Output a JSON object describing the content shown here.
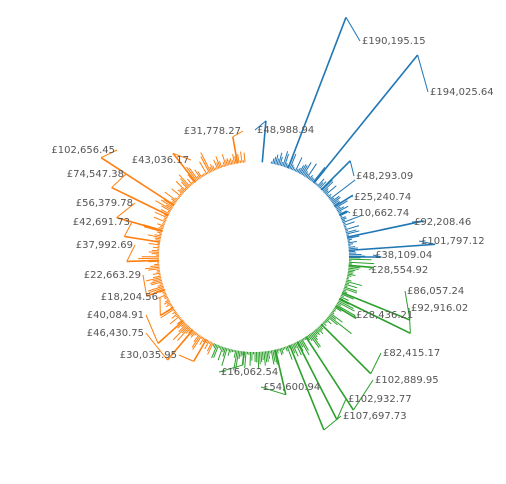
{
  "chart_data": {
    "type": "radial-bar",
    "currency_prefix": "£",
    "series": [
      {
        "name": "",
        "color": "#1f77b4"
      },
      {
        "name": "",
        "color": "#2ca02c"
      },
      {
        "name": "",
        "color": "#ff7f0e"
      }
    ],
    "labeled_points": [
      {
        "series": 0,
        "value": 190195.15,
        "label": "£190,195.15"
      },
      {
        "series": 0,
        "value": 194025.64,
        "label": "£194,025.64"
      },
      {
        "series": 0,
        "value": 48988.94,
        "label": "£48,988.94"
      },
      {
        "series": 0,
        "value": 48293.09,
        "label": "£48,293.09"
      },
      {
        "series": 0,
        "value": 25240.74,
        "label": "£25,240.74"
      },
      {
        "series": 0,
        "value": 10662.74,
        "label": "£10,662.74"
      },
      {
        "series": 0,
        "value": 92208.46,
        "label": "£92,208.46"
      },
      {
        "series": 0,
        "value": 101797.12,
        "label": "£101,797.12"
      },
      {
        "series": 0,
        "value": 38109.04,
        "label": "£38,109.04"
      },
      {
        "series": 1,
        "value": 28554.92,
        "label": "£28,554.92"
      },
      {
        "series": 1,
        "value": 86057.24,
        "label": "£86,057.24"
      },
      {
        "series": 1,
        "value": 92916.02,
        "label": "£92,916.02"
      },
      {
        "series": 1,
        "value": 28436.21,
        "label": "£28,436.21"
      },
      {
        "series": 1,
        "value": 82415.17,
        "label": "£82,415.17"
      },
      {
        "series": 1,
        "value": 102889.95,
        "label": "£102,889.95"
      },
      {
        "series": 1,
        "value": 102932.77,
        "label": "£102,932.77"
      },
      {
        "series": 1,
        "value": 107697.73,
        "label": "£107,697.73"
      },
      {
        "series": 1,
        "value": 54600.94,
        "label": "£54,600.94"
      },
      {
        "series": 1,
        "value": 16062.54,
        "label": "£16,062.54"
      },
      {
        "series": 2,
        "value": 30035.95,
        "label": "£30,035.95"
      },
      {
        "series": 2,
        "value": 46430.75,
        "label": "£46,430.75"
      },
      {
        "series": 2,
        "value": 40084.91,
        "label": "£40,084.91"
      },
      {
        "series": 2,
        "value": 18204.56,
        "label": "£18,204.56"
      },
      {
        "series": 2,
        "value": 22663.29,
        "label": "£22,663.29"
      },
      {
        "series": 2,
        "value": 37992.69,
        "label": "£37,992.69"
      },
      {
        "series": 2,
        "value": 42691.73,
        "label": "£42,691.73"
      },
      {
        "series": 2,
        "value": 56379.78,
        "label": "£56,379.78"
      },
      {
        "series": 2,
        "value": 74547.38,
        "label": "£74,547.38"
      },
      {
        "series": 2,
        "value": 102656.45,
        "label": "£102,656.45"
      },
      {
        "series": 2,
        "value": 43036.17,
        "label": "£43,036.17"
      },
      {
        "series": 2,
        "value": 31778.27,
        "label": "£31,778.27"
      }
    ]
  }
}
